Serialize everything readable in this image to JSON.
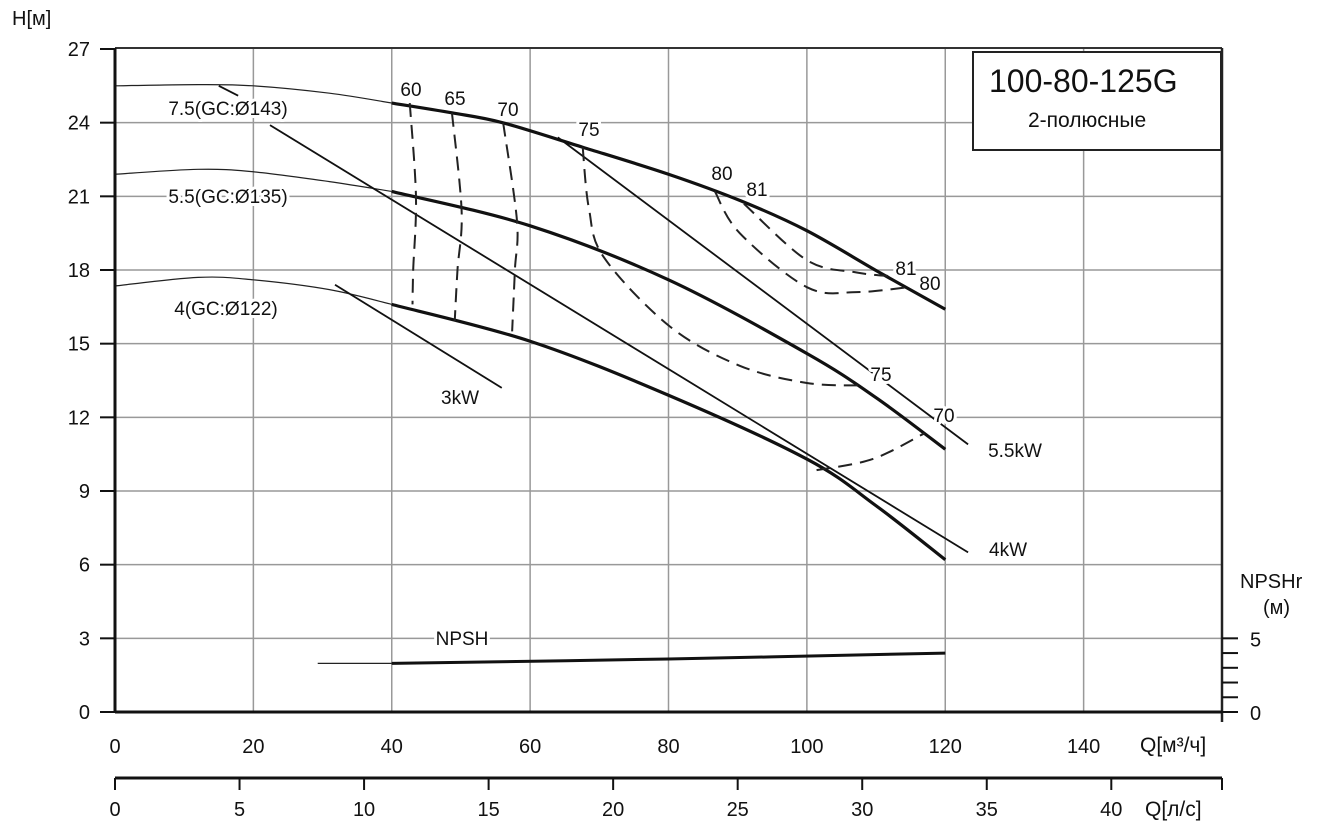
{
  "chart_data": {
    "type": "line",
    "title": "100-80-125G",
    "subtitle": "2-полюсные",
    "xlabel": "Q[м³/ч]",
    "ylabel": "H[м]",
    "x2label": "Q[л/с]",
    "y2label": "NPSHr",
    "y2unit": "(м)",
    "xlim": [
      0,
      160
    ],
    "ylim": [
      0,
      27
    ],
    "x2lim": [
      0,
      44.44
    ],
    "y2lim": [
      0,
      5
    ],
    "grid": true,
    "xticks": [
      0,
      20,
      40,
      60,
      80,
      100,
      120,
      140
    ],
    "yticks": [
      0,
      3,
      6,
      9,
      12,
      15,
      18,
      21,
      24,
      27
    ],
    "x2ticks": [
      0,
      5,
      10,
      15,
      20,
      25,
      30,
      35,
      40
    ],
    "y2ticks": [
      0,
      5
    ],
    "y2minor": [
      1,
      2,
      3,
      4
    ],
    "head_curves": [
      {
        "name": "7.5(GC:Ø143)",
        "thin": [
          [
            0,
            25.5
          ],
          [
            12,
            25.55
          ],
          [
            20,
            25.5
          ],
          [
            31,
            25.2
          ],
          [
            40,
            24.8
          ]
        ],
        "thick": [
          [
            40,
            24.8
          ],
          [
            48.7,
            24.4
          ],
          [
            56,
            24.0
          ],
          [
            67.6,
            23.0
          ],
          [
            80,
            21.9
          ],
          [
            90.6,
            20.8
          ],
          [
            100,
            19.6
          ],
          [
            110.5,
            17.9
          ],
          [
            120,
            16.4
          ]
        ]
      },
      {
        "name": "5.5(GC:Ø135)",
        "thin": [
          [
            0,
            21.9
          ],
          [
            12,
            22.1
          ],
          [
            20,
            22.0
          ],
          [
            31,
            21.6
          ],
          [
            40,
            21.2
          ]
        ],
        "thick": [
          [
            40,
            21.2
          ],
          [
            60,
            19.8
          ],
          [
            80,
            17.6
          ],
          [
            100,
            14.6
          ],
          [
            110,
            12.8
          ],
          [
            120,
            10.7
          ]
        ]
      },
      {
        "name": "4(GC:Ø122)",
        "thin": [
          [
            0,
            17.35
          ],
          [
            12,
            17.7
          ],
          [
            20,
            17.6
          ],
          [
            31,
            17.2
          ],
          [
            40,
            16.6
          ]
        ],
        "thick": [
          [
            40,
            16.6
          ],
          [
            60,
            15.1
          ],
          [
            80,
            12.9
          ],
          [
            100,
            10.3
          ],
          [
            110,
            8.4
          ],
          [
            120,
            6.2
          ]
        ]
      }
    ],
    "power_lines": [
      {
        "name": "7.5kW",
        "label": "",
        "points": [
          [
            15,
            25.5
          ],
          [
            17.8,
            25.1
          ]
        ]
      },
      {
        "name": "5.5kW",
        "label": "5.5kW",
        "points": [
          [
            64,
            23.4
          ],
          [
            123.3,
            10.9
          ]
        ]
      },
      {
        "name": "4kW",
        "label": "4kW",
        "points": [
          [
            22.4,
            23.9
          ],
          [
            123.3,
            6.5
          ]
        ]
      },
      {
        "name": "3kW",
        "label": "3kW",
        "points": [
          [
            31.8,
            17.4
          ],
          [
            55.9,
            13.2
          ]
        ]
      }
    ],
    "efficiency_curves": [
      {
        "label": "60",
        "points": [
          [
            42.6,
            24.8
          ],
          [
            43.5,
            21.0
          ],
          [
            43.1,
            18.0
          ],
          [
            43.0,
            16.6
          ]
        ]
      },
      {
        "label": "65",
        "points": [
          [
            48.7,
            24.4
          ],
          [
            50.1,
            20.4
          ],
          [
            49.5,
            18.0
          ],
          [
            49.1,
            15.9
          ]
        ]
      },
      {
        "label": "70",
        "points": [
          [
            56.1,
            24.0
          ],
          [
            58.1,
            20.0
          ],
          [
            57.8,
            18.0
          ],
          [
            57.4,
            15.5
          ]
        ]
      },
      {
        "label": "75",
        "points": [
          [
            67.6,
            23.0
          ],
          [
            68.5,
            20.5
          ],
          [
            70.7,
            18.5
          ],
          [
            80.2,
            15.7
          ],
          [
            90.3,
            14.1
          ],
          [
            100,
            13.4
          ],
          [
            107.7,
            13.3
          ]
        ],
        "end_label": "75"
      },
      {
        "label": "80",
        "points": [
          [
            86.7,
            21.2
          ],
          [
            90.3,
            19.5
          ],
          [
            100,
            17.3
          ],
          [
            107.2,
            17.1
          ],
          [
            114.6,
            17.3
          ]
        ],
        "end_label": "80"
      },
      {
        "label": "81",
        "points": [
          [
            90.9,
            20.7
          ],
          [
            100,
            18.4
          ],
          [
            107.2,
            17.9
          ],
          [
            112,
            17.75
          ]
        ],
        "end_label": "81"
      },
      {
        "label": "70",
        "points": [
          [
            101.4,
            9.85
          ],
          [
            109.5,
            10.3
          ],
          [
            117,
            11.35
          ]
        ],
        "end_label": "70"
      }
    ],
    "npsh": {
      "label": "NPSH",
      "unit": "м",
      "thin": [
        [
          29.3,
          3.3
        ],
        [
          40,
          3.3
        ]
      ],
      "thick": [
        [
          40,
          3.3
        ],
        [
          80,
          3.6
        ],
        [
          120,
          4.0
        ]
      ]
    }
  }
}
